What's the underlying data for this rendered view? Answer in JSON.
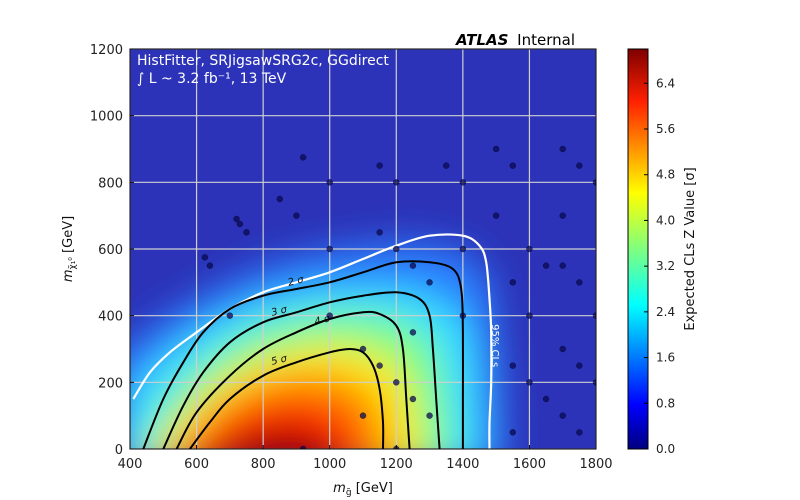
{
  "header": {
    "atlas_bold": "ATLAS",
    "atlas_rest": "Internal",
    "line1": "HistFitter, SRJigsawSRG2c, GGdirect",
    "line2": "∫ L ~ 3.2 fb⁻¹, 13 TeV"
  },
  "axes": {
    "xlabel": "mg̃ [GeV]",
    "ylabel": "mχ̃₁⁰ [GeV]",
    "colorbar_label": "Expected CLs Z Value [σ]"
  },
  "colors": {
    "jet_scale": [
      "#00007f",
      "#0000ff",
      "#007fff",
      "#00ffff",
      "#7fff7f",
      "#ffff00",
      "#ff7f00",
      "#ff0000",
      "#7f0000"
    ],
    "grid": "#d0d0d0",
    "contour": "#000000",
    "cls_line": "#ffffff"
  },
  "chart_data": {
    "type": "heatmap",
    "title": "",
    "xlabel": "m_g̃ [GeV]",
    "ylabel": "m_χ̃₁⁰ [GeV]",
    "xlim": [
      400,
      1800
    ],
    "ylim": [
      0,
      1200
    ],
    "x_ticks": [
      "400",
      "600",
      "800",
      "1000",
      "1200",
      "1400",
      "1600",
      "1800"
    ],
    "y_ticks": [
      "0",
      "200",
      "400",
      "600",
      "800",
      "1000",
      "1200"
    ],
    "zlim": [
      0,
      7.0
    ],
    "colorbar_ticks": [
      "0.0",
      "0.8",
      "1.6",
      "2.4",
      "3.2",
      "4.0",
      "4.8",
      "5.6",
      "6.4"
    ],
    "grid": true,
    "contours": [
      {
        "label": "2 σ",
        "color": "black",
        "x": [
          440,
          500,
          560,
          620,
          700,
          800,
          900,
          1000,
          1100,
          1200,
          1300,
          1370,
          1395,
          1400,
          1400,
          1400
        ],
        "y": [
          0,
          150,
          260,
          350,
          420,
          460,
          480,
          500,
          530,
          560,
          560,
          540,
          480,
          350,
          150,
          0
        ]
      },
      {
        "label": "3 σ",
        "color": "black",
        "x": [
          500,
          560,
          620,
          700,
          800,
          900,
          1000,
          1100,
          1200,
          1270,
          1300,
          1310,
          1320,
          1330
        ],
        "y": [
          0,
          130,
          230,
          320,
          380,
          410,
          440,
          460,
          470,
          450,
          400,
          300,
          150,
          0
        ]
      },
      {
        "label": "4 σ",
        "color": "black",
        "x": [
          540,
          600,
          700,
          800,
          900,
          1000,
          1100,
          1150,
          1200,
          1220,
          1230,
          1240
        ],
        "y": [
          0,
          110,
          220,
          300,
          350,
          390,
          410,
          405,
          370,
          300,
          150,
          0
        ]
      },
      {
        "label": "5 σ",
        "color": "black",
        "x": [
          580,
          640,
          700,
          800,
          900,
          1000,
          1060,
          1100,
          1130,
          1150,
          1160,
          1160
        ],
        "y": [
          0,
          80,
          150,
          220,
          260,
          290,
          300,
          290,
          250,
          180,
          80,
          0
        ]
      }
    ],
    "cls_line": {
      "label": "95% CLs",
      "color": "white",
      "x": [
        410,
        460,
        520,
        600,
        700,
        800,
        900,
        1000,
        1100,
        1200,
        1300,
        1400,
        1450,
        1470,
        1480,
        1485,
        1485,
        1480,
        1480
      ],
      "y": [
        150,
        230,
        290,
        350,
        420,
        470,
        500,
        530,
        570,
        610,
        640,
        640,
        610,
        560,
        450,
        350,
        200,
        80,
        0
      ]
    },
    "points": [
      {
        "x": 920,
        "y": 875
      },
      {
        "x": 1150,
        "y": 850
      },
      {
        "x": 1350,
        "y": 850
      },
      {
        "x": 1500,
        "y": 900
      },
      {
        "x": 1550,
        "y": 850
      },
      {
        "x": 1700,
        "y": 900
      },
      {
        "x": 1750,
        "y": 850
      },
      {
        "x": 1000,
        "y": 800
      },
      {
        "x": 1200,
        "y": 800
      },
      {
        "x": 1400,
        "y": 800
      },
      {
        "x": 1800,
        "y": 800
      },
      {
        "x": 850,
        "y": 750
      },
      {
        "x": 900,
        "y": 700
      },
      {
        "x": 1500,
        "y": 700
      },
      {
        "x": 1700,
        "y": 700
      },
      {
        "x": 720,
        "y": 690
      },
      {
        "x": 730,
        "y": 675
      },
      {
        "x": 750,
        "y": 650
      },
      {
        "x": 1150,
        "y": 650
      },
      {
        "x": 1000,
        "y": 600
      },
      {
        "x": 1200,
        "y": 600
      },
      {
        "x": 1400,
        "y": 600
      },
      {
        "x": 1600,
        "y": 600
      },
      {
        "x": 625,
        "y": 575
      },
      {
        "x": 640,
        "y": 550
      },
      {
        "x": 1250,
        "y": 550
      },
      {
        "x": 1650,
        "y": 550
      },
      {
        "x": 1700,
        "y": 550
      },
      {
        "x": 1300,
        "y": 500
      },
      {
        "x": 1550,
        "y": 500
      },
      {
        "x": 1750,
        "y": 500
      },
      {
        "x": 700,
        "y": 400
      },
      {
        "x": 1000,
        "y": 400
      },
      {
        "x": 1400,
        "y": 400
      },
      {
        "x": 1600,
        "y": 400
      },
      {
        "x": 1800,
        "y": 400
      },
      {
        "x": 1250,
        "y": 350
      },
      {
        "x": 1100,
        "y": 300
      },
      {
        "x": 1700,
        "y": 300
      },
      {
        "x": 1150,
        "y": 250
      },
      {
        "x": 1550,
        "y": 250
      },
      {
        "x": 1750,
        "y": 250
      },
      {
        "x": 1200,
        "y": 200
      },
      {
        "x": 1600,
        "y": 200
      },
      {
        "x": 1800,
        "y": 200
      },
      {
        "x": 1250,
        "y": 150
      },
      {
        "x": 1650,
        "y": 150
      },
      {
        "x": 1100,
        "y": 100
      },
      {
        "x": 1300,
        "y": 100
      },
      {
        "x": 1700,
        "y": 100
      },
      {
        "x": 1550,
        "y": 50
      },
      {
        "x": 1750,
        "y": 50
      },
      {
        "x": 920,
        "y": 0
      },
      {
        "x": 1200,
        "y": 0
      }
    ]
  }
}
